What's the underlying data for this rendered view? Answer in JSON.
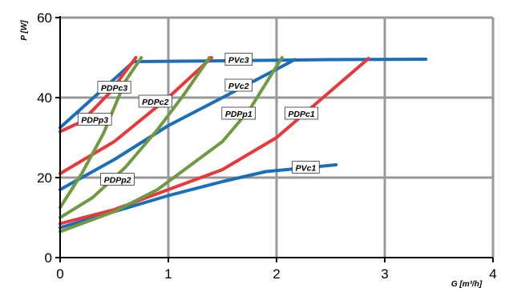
{
  "chart_data": {
    "type": "line",
    "title": "",
    "xlabel": "G [m³/h]",
    "ylabel": "P [W]",
    "xlim": [
      0,
      4
    ],
    "ylim": [
      0,
      60
    ],
    "x_ticks": [
      "0",
      "1",
      "2",
      "3",
      "4"
    ],
    "y_ticks": [
      "0",
      "20",
      "40",
      "60"
    ],
    "grid": true,
    "colors": {
      "PV": "#1a6fb8",
      "PDPc": "#e8383a",
      "PDPp": "#6f9a42",
      "grid": "#999999"
    },
    "series": [
      {
        "name": "PVc3",
        "group": "PV",
        "label_at": [
          1.65,
          49.5
        ],
        "points": [
          [
            0,
            32.5
          ],
          [
            0.68,
            49
          ],
          [
            1.5,
            49.2
          ],
          [
            2.5,
            49.5
          ],
          [
            3.38,
            49.6
          ]
        ]
      },
      {
        "name": "PVc2",
        "group": "PV",
        "label_at": [
          1.65,
          43
        ],
        "points": [
          [
            0,
            17
          ],
          [
            0.5,
            24.5
          ],
          [
            1,
            33
          ],
          [
            1.5,
            40
          ],
          [
            2.17,
            49.5
          ]
        ]
      },
      {
        "name": "PVc1",
        "group": "PV",
        "label_at": [
          2.27,
          22.5
        ],
        "points": [
          [
            0,
            7.5
          ],
          [
            0.5,
            11.5
          ],
          [
            1,
            15.5
          ],
          [
            1.5,
            19
          ],
          [
            1.9,
            21.5
          ],
          [
            2.55,
            23.2
          ]
        ]
      },
      {
        "name": "PDPc3",
        "group": "PDPc",
        "label_at": [
          0.5,
          42.5
        ],
        "points": [
          [
            0,
            31.5
          ],
          [
            0.2,
            34
          ],
          [
            0.45,
            41
          ],
          [
            0.7,
            50
          ]
        ]
      },
      {
        "name": "PDPc2",
        "group": "PDPc",
        "label_at": [
          0.88,
          39
        ],
        "points": [
          [
            0,
            21
          ],
          [
            0.5,
            29
          ],
          [
            1,
            40
          ],
          [
            1.4,
            50
          ]
        ]
      },
      {
        "name": "PDPc1",
        "group": "PDPc",
        "label_at": [
          2.23,
          36
        ],
        "points": [
          [
            0,
            8.5
          ],
          [
            0.5,
            12
          ],
          [
            1,
            17
          ],
          [
            1.5,
            22
          ],
          [
            2,
            30
          ],
          [
            2.85,
            49.8
          ]
        ]
      },
      {
        "name": "PDPp3",
        "group": "PDPp",
        "label_at": [
          0.32,
          34.5
        ],
        "points": [
          [
            0,
            12.5
          ],
          [
            0.2,
            21
          ],
          [
            0.4,
            31
          ],
          [
            0.6,
            44
          ],
          [
            0.75,
            50
          ]
        ]
      },
      {
        "name": "PDPp2",
        "group": "PDPp",
        "label_at": [
          0.53,
          19.5
        ],
        "points": [
          [
            0,
            10
          ],
          [
            0.3,
            15
          ],
          [
            0.6,
            22.5
          ],
          [
            0.9,
            32
          ],
          [
            1.15,
            41
          ],
          [
            1.38,
            50
          ]
        ]
      },
      {
        "name": "PDPp1",
        "group": "PDPp",
        "label_at": [
          1.65,
          36
        ],
        "points": [
          [
            0,
            6.5
          ],
          [
            0.5,
            11.5
          ],
          [
            0.9,
            17
          ],
          [
            1.2,
            23
          ],
          [
            1.5,
            29
          ],
          [
            1.75,
            37
          ],
          [
            2.05,
            50
          ]
        ]
      }
    ]
  }
}
